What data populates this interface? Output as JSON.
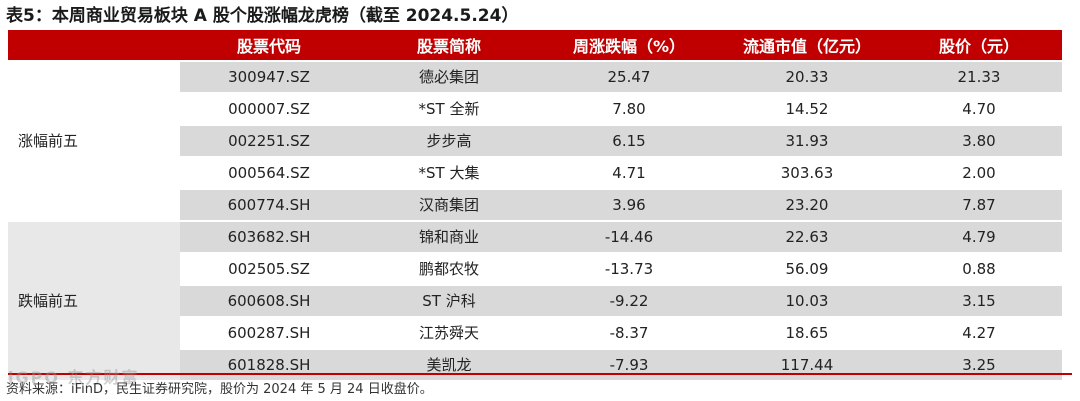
{
  "title": "表5：本周商业贸易板块 A 股个股涨幅龙虎榜（截至 2024.5.24）",
  "headers": [
    "股票代码",
    "股票简称",
    "周涨跌幅（%）",
    "流通市值（亿元）",
    "股价（元）"
  ],
  "groups": [
    {
      "label": "涨幅前五",
      "rows": [
        {
          "code": "300947.SZ",
          "name": "德必集团",
          "change": "25.47",
          "mktcap": "20.33",
          "price": "21.33"
        },
        {
          "code": "000007.SZ",
          "name": "*ST 全新",
          "change": "7.80",
          "mktcap": "14.52",
          "price": "4.70"
        },
        {
          "code": "002251.SZ",
          "name": "步步高",
          "change": "6.15",
          "mktcap": "31.93",
          "price": "3.80"
        },
        {
          "code": "000564.SZ",
          "name": "*ST 大集",
          "change": "4.71",
          "mktcap": "303.63",
          "price": "2.00"
        },
        {
          "code": "600774.SH",
          "name": "汉商集团",
          "change": "3.96",
          "mktcap": "23.20",
          "price": "7.87"
        }
      ]
    },
    {
      "label": "跌幅前五",
      "rows": [
        {
          "code": "603682.SH",
          "name": "锦和商业",
          "change": "-14.46",
          "mktcap": "22.63",
          "price": "4.79"
        },
        {
          "code": "002505.SZ",
          "name": "鹏都农牧",
          "change": "-13.73",
          "mktcap": "56.09",
          "price": "0.88"
        },
        {
          "code": "600608.SH",
          "name": "ST 沪科",
          "change": "-9.22",
          "mktcap": "10.03",
          "price": "3.15"
        },
        {
          "code": "600287.SH",
          "name": "江苏舜天",
          "change": "-8.37",
          "mktcap": "18.65",
          "price": "4.27"
        },
        {
          "code": "601828.SH",
          "name": "美凯龙",
          "change": "-7.93",
          "mktcap": "117.44",
          "price": "3.25"
        }
      ]
    }
  ],
  "source": "资料来源：iFinD，民生证券研究院，股价为 2024 年 5 月 24 日收盘价。",
  "watermark": "iGPO 东方财富"
}
